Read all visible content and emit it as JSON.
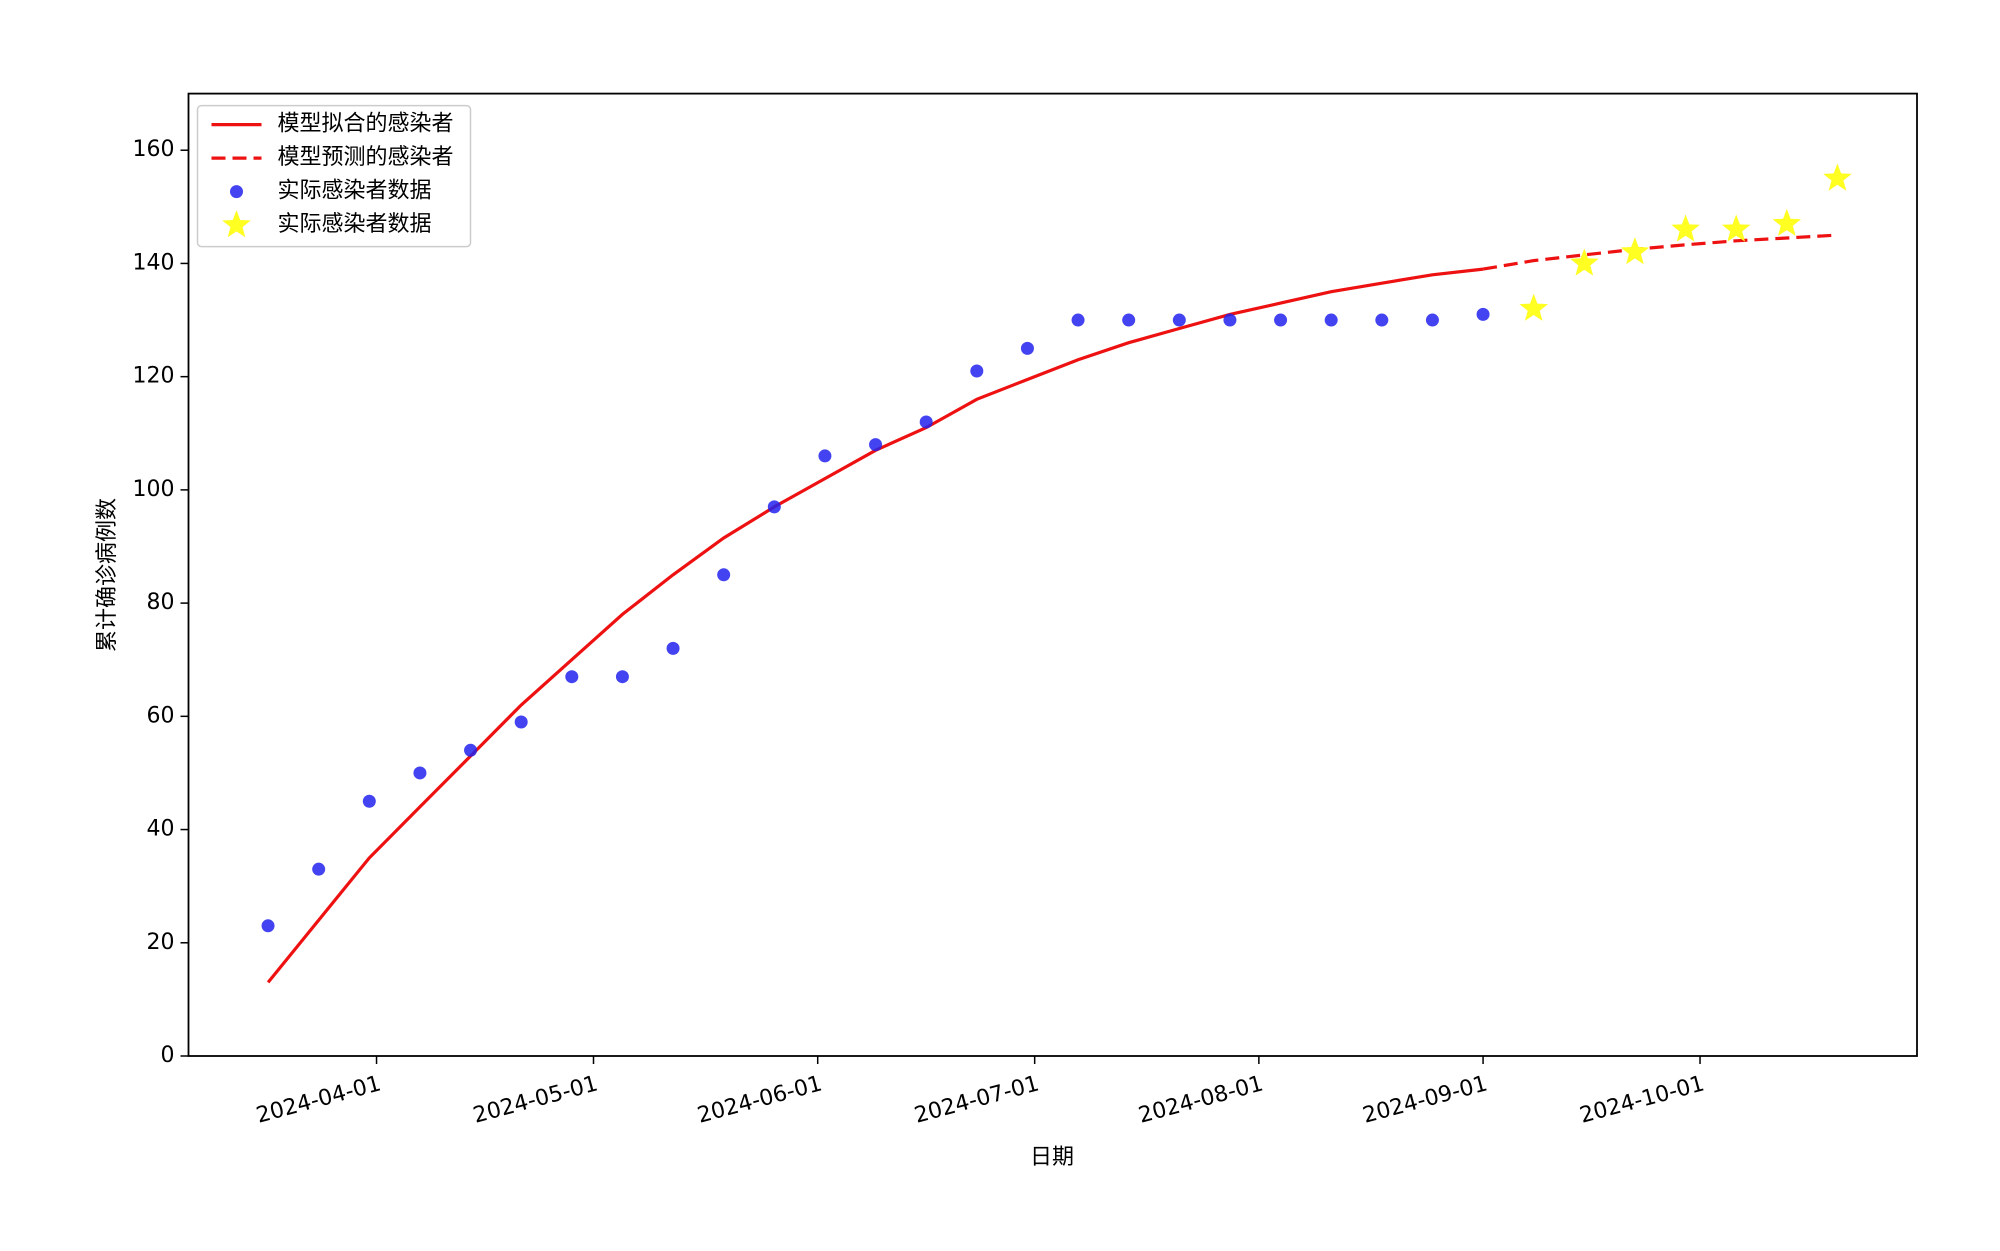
{
  "chart_data": {
    "type": "line",
    "xlabel": "日期",
    "ylabel": "累计确诊病例数",
    "xlim": [
      "2024-03-06",
      "2024-10-31"
    ],
    "ylim": [
      0,
      170
    ],
    "xticks": [
      "2024-04-01",
      "2024-05-01",
      "2024-06-01",
      "2024-07-01",
      "2024-08-01",
      "2024-09-01",
      "2024-10-01"
    ],
    "yticks": [
      0,
      20,
      40,
      60,
      80,
      100,
      120,
      140,
      160
    ],
    "legend": "upper left",
    "series": [
      {
        "name": "模型拟合的感染者",
        "color": "#ee1111",
        "linestyle": "solid",
        "marker": "none",
        "x": [
          "2024-03-17",
          "2024-03-24",
          "2024-03-31",
          "2024-04-07",
          "2024-04-14",
          "2024-04-21",
          "2024-04-28",
          "2024-05-05",
          "2024-05-12",
          "2024-05-19",
          "2024-05-26",
          "2024-06-02",
          "2024-06-09",
          "2024-06-16",
          "2024-06-23",
          "2024-06-30",
          "2024-07-07",
          "2024-07-14",
          "2024-07-21",
          "2024-07-28",
          "2024-08-04",
          "2024-08-11",
          "2024-08-18",
          "2024-08-25",
          "2024-09-01"
        ],
        "values": [
          13,
          24,
          35,
          44,
          53,
          62,
          70,
          78,
          85,
          91.5,
          97,
          102,
          107,
          111,
          116,
          119.5,
          123,
          126,
          128.5,
          131,
          133,
          135,
          136.5,
          138,
          139
        ]
      },
      {
        "name": "模型预测的感染者",
        "color": "#ee1111",
        "linestyle": "dashed",
        "marker": "none",
        "x": [
          "2024-09-01",
          "2024-09-08",
          "2024-09-15",
          "2024-09-22",
          "2024-09-29",
          "2024-10-06",
          "2024-10-13",
          "2024-10-20"
        ],
        "values": [
          139,
          140.5,
          141.5,
          142.5,
          143.3,
          144,
          144.5,
          145
        ]
      },
      {
        "name": "实际感染者数据",
        "color": "#2222ee",
        "linestyle": "none",
        "marker": "circle",
        "x": [
          "2024-03-17",
          "2024-03-24",
          "2024-03-31",
          "2024-04-07",
          "2024-04-14",
          "2024-04-21",
          "2024-04-28",
          "2024-05-05",
          "2024-05-12",
          "2024-05-19",
          "2024-05-26",
          "2024-06-02",
          "2024-06-09",
          "2024-06-16",
          "2024-06-23",
          "2024-06-30",
          "2024-07-07",
          "2024-07-14",
          "2024-07-21",
          "2024-07-28",
          "2024-08-04",
          "2024-08-11",
          "2024-08-18",
          "2024-08-25",
          "2024-09-01"
        ],
        "values": [
          23,
          33,
          45,
          50,
          54,
          59,
          67,
          67,
          72,
          85,
          97,
          106,
          108,
          112,
          121,
          125,
          130,
          130,
          130,
          130,
          130,
          130,
          130,
          130,
          131
        ]
      },
      {
        "name": "实际感染者数据",
        "color": "#ffff22",
        "linestyle": "none",
        "marker": "star",
        "x": [
          "2024-09-08",
          "2024-09-15",
          "2024-09-22",
          "2024-09-29",
          "2024-10-06",
          "2024-10-13",
          "2024-10-20"
        ],
        "values": [
          132,
          140,
          142,
          146,
          146,
          147,
          155
        ]
      }
    ]
  }
}
